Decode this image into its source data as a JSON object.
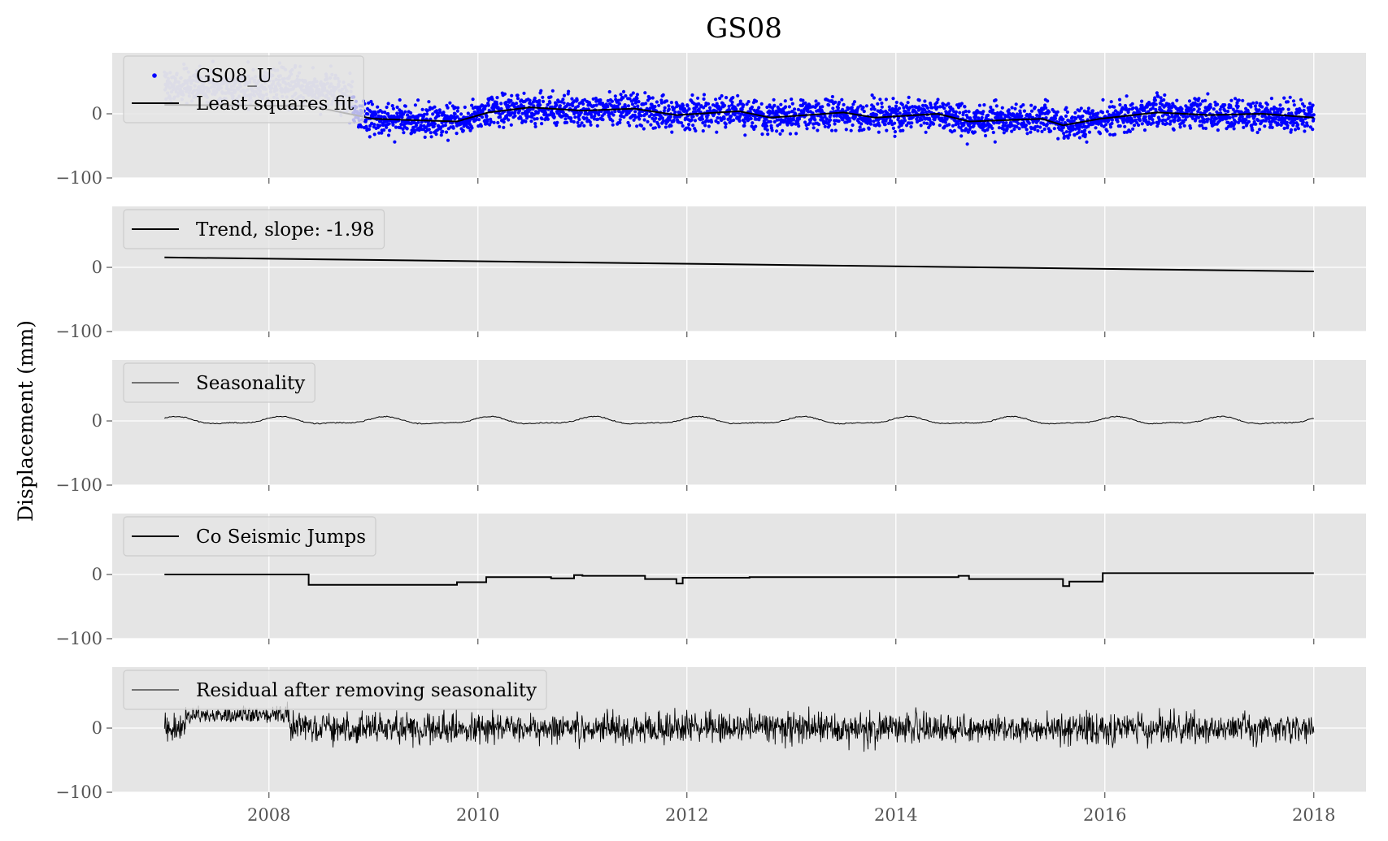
{
  "chart_data": {
    "type": "line",
    "title": "GS08",
    "ylabel": "Displacement (mm)",
    "xlim": [
      2006.5,
      2018.5
    ],
    "ylim": [
      -100,
      95
    ],
    "x_ticks": [
      2008,
      2010,
      2012,
      2014,
      2016,
      2018
    ],
    "x_tick_labels": [
      "2008",
      "2010",
      "2012",
      "2014",
      "2016",
      "2018"
    ],
    "y_ticks": [
      0,
      -100
    ],
    "y_tick_labels": [
      "0",
      "−100"
    ],
    "grid": true,
    "legend_position": "upper left",
    "colors": {
      "plot_bg": "#e5e5e5",
      "grid": "#ffffff",
      "observations": "#0000ff",
      "observations_early": "#b8b8f0",
      "lines": "#000000"
    },
    "panels": [
      {
        "series": [
          {
            "name": "GS08_U",
            "kind": "points",
            "x_range": [
              2007.0,
              2018.0
            ],
            "noise_sd": 12,
            "early_offset_until": 2008.8,
            "early_offset": 30
          },
          {
            "name": "Least squares fit",
            "kind": "line",
            "x": [
              2007.0,
              2008.4,
              2009.0,
              2009.8,
              2010.1,
              2010.5,
              2011.0,
              2011.5,
              2011.9,
              2012.5,
              2012.8,
              2013.5,
              2013.8,
              2014.4,
              2014.7,
              2015.4,
              2015.6,
              2015.95,
              2016.5,
              2017.0,
              2017.5,
              2018.0
            ],
            "y": [
              14,
              12,
              -8,
              -12,
              2,
              10,
              5,
              8,
              -2,
              4,
              -6,
              2,
              -6,
              0,
              -12,
              -8,
              -18,
              -8,
              2,
              -2,
              0,
              -6
            ]
          }
        ]
      },
      {
        "series": [
          {
            "name": "Trend, slope: -1.98",
            "kind": "line",
            "x": [
              2007.0,
              2018.0
            ],
            "y": [
              15.5,
              -6.3
            ]
          }
        ]
      },
      {
        "series": [
          {
            "name": "Seasonality",
            "kind": "seasonal",
            "x_range": [
              2007.0,
              2018.0
            ],
            "annual_amplitude": 5,
            "semiannual_amplitude": 2,
            "phase": 0.15
          }
        ]
      },
      {
        "series": [
          {
            "name": "Co Seismic Jumps",
            "kind": "step",
            "x": [
              2007.0,
              2008.38,
              2008.38,
              2009.8,
              2009.8,
              2010.08,
              2010.08,
              2010.7,
              2010.7,
              2010.92,
              2010.92,
              2011.0,
              2011.0,
              2011.6,
              2011.6,
              2011.9,
              2011.9,
              2011.96,
              2011.96,
              2012.6,
              2012.6,
              2014.6,
              2014.6,
              2014.7,
              2014.7,
              2015.6,
              2015.6,
              2015.66,
              2015.66,
              2015.98,
              2015.98,
              2018.0
            ],
            "y": [
              0,
              0,
              -16,
              -16,
              -12,
              -12,
              -4,
              -4,
              -6,
              -6,
              -1,
              -1,
              -2,
              -2,
              -7,
              -7,
              -14,
              -14,
              -5,
              -5,
              -4,
              -4,
              -2,
              -2,
              -7,
              -7,
              -18,
              -18,
              -11,
              -11,
              2,
              2
            ]
          }
        ]
      },
      {
        "series": [
          {
            "name": "Residual after removing seasonality",
            "kind": "noise",
            "x_range": [
              2007.0,
              2018.0
            ],
            "noise_sd": 12,
            "early_offset_until": 2008.2,
            "early_offset": 15
          }
        ]
      }
    ]
  }
}
